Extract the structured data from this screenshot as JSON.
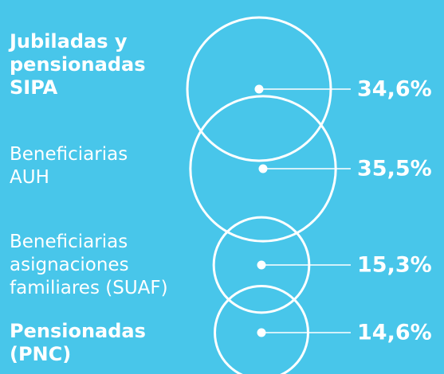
{
  "chart_data": {
    "type": "bubble",
    "categories": [
      "Jubiladas y\npensionadas\nSIPA",
      "Beneficiarias\nAUH",
      "Beneficiarias\nasignaciones\nfamiliares (SUAF)",
      "Pensionadas\n(PNC)"
    ],
    "values": [
      34.6,
      35.5,
      15.3,
      14.6
    ],
    "value_labels": [
      "34,6%",
      "35,5%",
      "15,3%",
      "14,6%"
    ],
    "color": "#ffffff"
  }
}
